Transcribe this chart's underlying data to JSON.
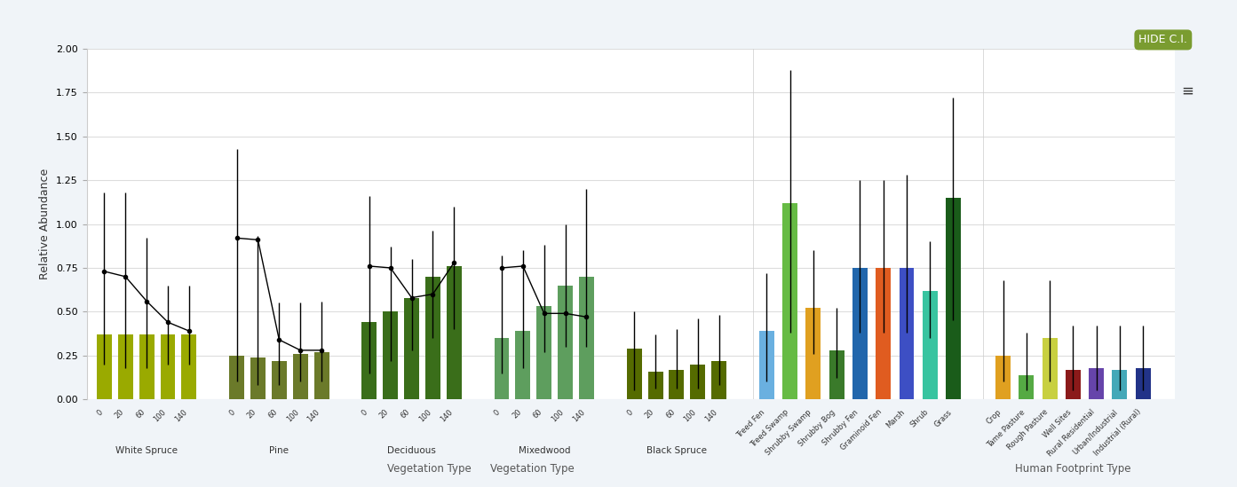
{
  "background_color": "#f0f4f8",
  "plot_bg_color": "#ffffff",
  "ylim": [
    0,
    2.0
  ],
  "yticks": [
    0.0,
    0.25,
    0.5,
    0.75,
    1.0,
    1.25,
    1.5,
    1.75,
    2.0
  ],
  "ylabel": "Relative Abundance",
  "xlabel_veg": "Vegetation Type",
  "xlabel_hfp": "Human Footprint Type",
  "title_button": "HIDE C.I.",
  "veg_groups": [
    {
      "name": "White Spruce",
      "color": "#9aaa00",
      "x_labels": [
        "0",
        "20",
        "60",
        "100",
        "140"
      ],
      "bar_values": [
        0.37,
        0.37,
        0.37,
        0.37,
        0.37
      ],
      "ci_lower": [
        0.2,
        0.18,
        0.18,
        0.2,
        0.2
      ],
      "ci_upper": [
        1.18,
        1.18,
        0.92,
        0.65,
        0.65
      ],
      "line_values": [
        0.73,
        0.7,
        0.56,
        0.44,
        0.39
      ]
    },
    {
      "name": "Pine",
      "color": "#6b7a2a",
      "x_labels": [
        "0",
        "20",
        "60",
        "100",
        "140"
      ],
      "bar_values": [
        0.25,
        0.24,
        0.22,
        0.26,
        0.27
      ],
      "ci_lower": [
        0.1,
        0.08,
        0.08,
        0.1,
        0.1
      ],
      "ci_upper": [
        1.43,
        0.93,
        0.55,
        0.55,
        0.56
      ],
      "line_values": [
        0.92,
        0.91,
        0.34,
        0.28,
        0.28
      ]
    },
    {
      "name": "Deciduous",
      "color": "#3a6e1a",
      "x_labels": [
        "0",
        "20",
        "60",
        "100",
        "140"
      ],
      "bar_values": [
        0.44,
        0.5,
        0.58,
        0.7,
        0.76
      ],
      "ci_lower": [
        0.15,
        0.22,
        0.28,
        0.35,
        0.4
      ],
      "ci_upper": [
        1.16,
        0.87,
        0.8,
        0.96,
        1.1
      ],
      "line_values": [
        0.76,
        0.75,
        0.58,
        0.6,
        0.78
      ]
    },
    {
      "name": "Mixedwood",
      "color": "#5e9e5e",
      "x_labels": [
        "0",
        "20",
        "60",
        "100",
        "140"
      ],
      "bar_values": [
        0.35,
        0.39,
        0.53,
        0.65,
        0.7
      ],
      "ci_lower": [
        0.15,
        0.18,
        0.27,
        0.3,
        0.3
      ],
      "ci_upper": [
        0.82,
        0.85,
        0.88,
        1.0,
        1.2
      ],
      "line_values": [
        0.75,
        0.76,
        0.49,
        0.49,
        0.47
      ]
    },
    {
      "name": "Black Spruce",
      "color": "#556b00",
      "x_labels": [
        "0",
        "20",
        "60",
        "100",
        "140"
      ],
      "bar_values": [
        0.29,
        0.16,
        0.17,
        0.2,
        0.22
      ],
      "ci_lower": [
        0.05,
        0.06,
        0.06,
        0.06,
        0.08
      ],
      "ci_upper": [
        0.5,
        0.37,
        0.4,
        0.46,
        0.48
      ],
      "line_values": [
        null,
        null,
        null,
        null,
        null
      ]
    }
  ],
  "single_bars": [
    {
      "name": "Treed Fen",
      "color": "#6ab0e0",
      "value": 0.39,
      "ci_lower": 0.1,
      "ci_upper": 0.72
    },
    {
      "name": "Treed Swamp",
      "color": "#66bb44",
      "value": 1.12,
      "ci_lower": 0.38,
      "ci_upper": 1.88
    },
    {
      "name": "Shrubby Swamp",
      "color": "#e0a020",
      "value": 0.52,
      "ci_lower": 0.26,
      "ci_upper": 0.85
    },
    {
      "name": "Shrubby Bog",
      "color": "#3a7a2a",
      "value": 0.28,
      "ci_lower": 0.12,
      "ci_upper": 0.52
    },
    {
      "name": "Shrubby Fen",
      "color": "#2166ac",
      "value": 0.75,
      "ci_lower": 0.38,
      "ci_upper": 1.25
    },
    {
      "name": "Graminoid Fen",
      "color": "#e05c20",
      "value": 0.75,
      "ci_lower": 0.38,
      "ci_upper": 1.25
    },
    {
      "name": "Marsh",
      "color": "#3d4fc4",
      "value": 0.75,
      "ci_lower": 0.38,
      "ci_upper": 1.28
    },
    {
      "name": "Shrub",
      "color": "#38c4a0",
      "value": 0.62,
      "ci_lower": 0.35,
      "ci_upper": 0.9
    },
    {
      "name": "Grass",
      "color": "#1a5c1a",
      "value": 1.15,
      "ci_lower": 0.45,
      "ci_upper": 1.72
    }
  ],
  "hfp_bars": [
    {
      "name": "Crop",
      "color": "#e0a020",
      "value": 0.25,
      "ci_lower": 0.1,
      "ci_upper": 0.68
    },
    {
      "name": "Tame Pasture",
      "color": "#55aa44",
      "value": 0.14,
      "ci_lower": 0.05,
      "ci_upper": 0.38
    },
    {
      "name": "Rough Pasture",
      "color": "#c8d040",
      "value": 0.35,
      "ci_lower": 0.1,
      "ci_upper": 0.68
    },
    {
      "name": "Well Sites",
      "color": "#8b1a1a",
      "value": 0.17,
      "ci_lower": 0.05,
      "ci_upper": 0.42
    },
    {
      "name": "Rural Residential",
      "color": "#6644aa",
      "value": 0.18,
      "ci_lower": 0.05,
      "ci_upper": 0.42
    },
    {
      "name": "Urban/Industrial",
      "color": "#44a8b8",
      "value": 0.17,
      "ci_lower": 0.05,
      "ci_upper": 0.42
    },
    {
      "name": "Industrial (Rural)",
      "color": "#223388",
      "value": 0.18,
      "ci_lower": 0.05,
      "ci_upper": 0.42
    }
  ]
}
